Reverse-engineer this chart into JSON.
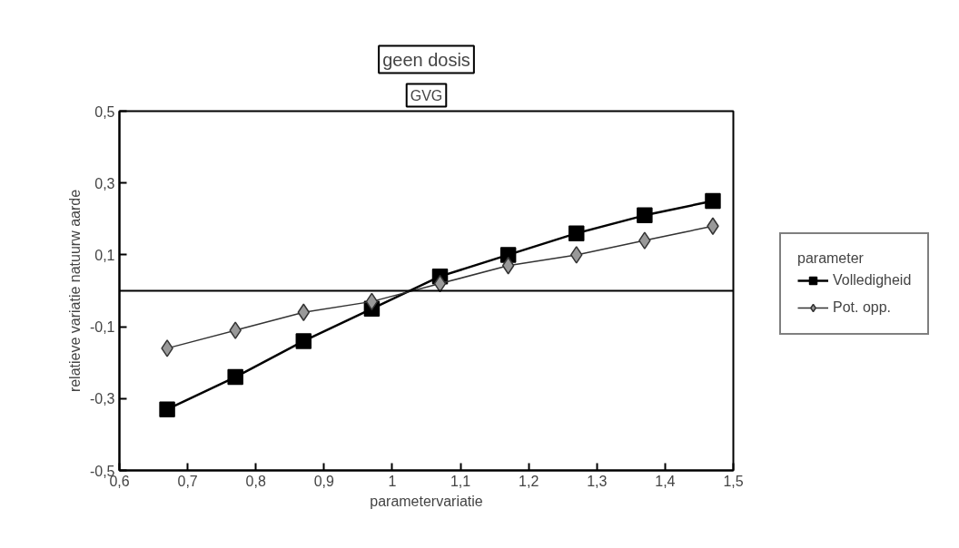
{
  "chart_data": {
    "type": "line",
    "title": "geen dosis",
    "subtitle": "GVG",
    "xlabel": "parametervariatie",
    "ylabel": "relatieve variatie natuurw aarde",
    "legend_title": "parameter",
    "x": [
      0.67,
      0.77,
      0.87,
      0.97,
      1.07,
      1.17,
      1.27,
      1.37,
      1.47
    ],
    "series": [
      {
        "name": "Volledigheid",
        "color": "#000000",
        "marker": "square",
        "values": [
          -0.33,
          -0.24,
          -0.14,
          -0.05,
          0.04,
          0.1,
          0.16,
          0.21,
          0.25
        ]
      },
      {
        "name": "Pot. opp.",
        "color": "#333333",
        "marker": "diamond",
        "values": [
          -0.16,
          -0.11,
          -0.06,
          -0.03,
          0.02,
          0.07,
          0.1,
          0.14,
          0.18
        ]
      }
    ],
    "xlim": [
      0.6,
      1.5
    ],
    "xticks": [
      {
        "value": 0.6,
        "label": "0,6"
      },
      {
        "value": 0.7,
        "label": "0,7"
      },
      {
        "value": 0.8,
        "label": "0,8"
      },
      {
        "value": 0.9,
        "label": "0,9"
      },
      {
        "value": 1,
        "label": "1"
      },
      {
        "value": 1.1,
        "label": "1,1"
      },
      {
        "value": 1.2,
        "label": "1,2"
      },
      {
        "value": 1.3,
        "label": "1,3"
      },
      {
        "value": 1.4,
        "label": "1,4"
      },
      {
        "value": 1.5,
        "label": "1,5"
      }
    ],
    "ylim": [
      -0.5,
      0.5
    ],
    "yticks": [
      {
        "value": -0.5,
        "label": "-0,5"
      },
      {
        "value": -0.3,
        "label": "-0,3"
      },
      {
        "value": -0.1,
        "label": "-0,1"
      },
      {
        "value": 0.1,
        "label": "0,1"
      },
      {
        "value": 0.3,
        "label": "0,3"
      },
      {
        "value": 0.5,
        "label": "0,5"
      }
    ],
    "ref_lines": [
      {
        "axis": "y",
        "value": 0,
        "color": "#000000"
      }
    ],
    "legend": "right",
    "grid": false,
    "line_style": "solid"
  }
}
